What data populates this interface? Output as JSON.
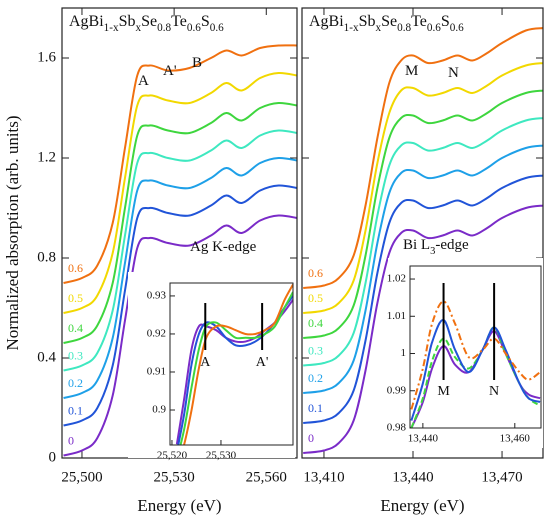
{
  "chart_data": [
    {
      "type": "line",
      "title": [
        {
          "text": "AgBi"
        },
        {
          "text": "1-x",
          "sub": true
        },
        {
          "text": "Sb"
        },
        {
          "text": "x",
          "sub": true
        },
        {
          "text": "Se"
        },
        {
          "text": "0.8",
          "sub": true
        },
        {
          "text": "Te"
        },
        {
          "text": "0.6",
          "sub": true
        },
        {
          "text": "S"
        },
        {
          "text": "0.6",
          "sub": true
        }
      ],
      "x_label": "Energy (eV)",
      "y_label": "Normalized absorption (arb. units)",
      "xlim": [
        25493.5,
        25570
      ],
      "ylim": [
        0,
        1.8
      ],
      "xticks": [
        {
          "value": 25500,
          "label": "25,500"
        },
        {
          "value": 25530,
          "label": "25,530"
        },
        {
          "value": 25560,
          "label": "25,560"
        }
      ],
      "yticks": [
        0,
        0.4,
        0.8,
        1.2,
        1.6
      ],
      "ytick_labels": true,
      "x": [
        25494,
        25500,
        25505,
        25510,
        25514,
        25518,
        25522,
        25528,
        25535,
        25542,
        25547,
        25552,
        25558,
        25564,
        25570
      ],
      "series": [
        {
          "name": "0",
          "color": "#7a2bc8",
          "values": [
            0.01,
            0.03,
            0.08,
            0.25,
            0.55,
            0.84,
            0.88,
            0.86,
            0.85,
            0.89,
            0.93,
            0.9,
            0.95,
            0.97,
            0.96
          ]
        },
        {
          "name": "0.1",
          "color": "#2154d8",
          "values": [
            0.13,
            0.15,
            0.2,
            0.37,
            0.67,
            0.96,
            1.0,
            0.98,
            0.97,
            1.01,
            1.05,
            1.02,
            1.07,
            1.09,
            1.08
          ]
        },
        {
          "name": "0.2",
          "color": "#1ea0e8",
          "values": [
            0.24,
            0.26,
            0.31,
            0.48,
            0.78,
            1.07,
            1.11,
            1.09,
            1.08,
            1.12,
            1.16,
            1.13,
            1.18,
            1.2,
            1.19
          ]
        },
        {
          "name": "0.3",
          "color": "#3ee8c0",
          "values": [
            0.35,
            0.37,
            0.42,
            0.59,
            0.89,
            1.18,
            1.22,
            1.2,
            1.19,
            1.23,
            1.27,
            1.24,
            1.29,
            1.31,
            1.3
          ]
        },
        {
          "name": "0.4",
          "color": "#3ed63e",
          "values": [
            0.46,
            0.48,
            0.53,
            0.7,
            1.0,
            1.29,
            1.33,
            1.31,
            1.3,
            1.34,
            1.38,
            1.35,
            1.4,
            1.42,
            1.41
          ]
        },
        {
          "name": "0.5",
          "color": "#f2d800",
          "values": [
            0.58,
            0.6,
            0.65,
            0.82,
            1.12,
            1.41,
            1.45,
            1.43,
            1.42,
            1.46,
            1.5,
            1.47,
            1.52,
            1.54,
            1.53
          ]
        },
        {
          "name": "0.6",
          "color": "#f07010",
          "values": [
            0.7,
            0.72,
            0.77,
            0.94,
            1.24,
            1.53,
            1.57,
            1.55,
            1.56,
            1.6,
            1.63,
            1.61,
            1.64,
            1.65,
            1.65
          ]
        }
      ],
      "annotations": [
        [
          {
            "text": "A"
          }
        ],
        [
          {
            "text": "A'"
          }
        ],
        [
          {
            "text": "B"
          }
        ],
        [
          {
            "text": "Ag K-edge"
          }
        ]
      ],
      "inset": {
        "xlim": [
          25519.6,
          25544.7
        ],
        "ylim": [
          0.8908,
          0.9334
        ],
        "xticks": [
          {
            "value": 25520,
            "label": "25,520"
          },
          {
            "value": 25530,
            "label": "25,530"
          }
        ],
        "yticks": [
          0.9,
          0.91,
          0.92,
          0.93
        ],
        "x": [
          25521,
          25522.5,
          25524,
          25525.5,
          25527,
          25529,
          25531,
          25533,
          25535,
          25537,
          25539,
          25541,
          25543,
          25544.7
        ],
        "series": [
          {
            "color": "#7a2bc8",
            "values": [
              0.891,
              0.903,
              0.916,
              0.922,
              0.922,
              0.921,
              0.919,
              0.918,
              0.918,
              0.919,
              0.921,
              0.923,
              0.926,
              0.929
            ]
          },
          {
            "color": "#2154d8",
            "values": [
              0.889,
              0.899,
              0.912,
              0.92,
              0.923,
              0.922,
              0.919,
              0.917,
              0.917,
              0.918,
              0.92,
              0.923,
              0.927,
              0.93
            ]
          },
          {
            "color": "#3ed63e",
            "values": [
              0.887,
              0.895,
              0.906,
              0.916,
              0.922,
              0.923,
              0.921,
              0.919,
              0.919,
              0.919,
              0.92,
              0.922,
              0.927,
              0.931
            ]
          },
          {
            "color": "#f07010",
            "values": [
              0.885,
              0.891,
              0.9,
              0.911,
              0.919,
              0.922,
              0.922,
              0.921,
              0.92,
              0.92,
              0.921,
              0.923,
              0.929,
              0.933
            ]
          }
        ],
        "markers": [
          {
            "x": 25526.8,
            "label": "A"
          },
          {
            "x": 25538.4,
            "label": "A'"
          }
        ]
      }
    },
    {
      "type": "line",
      "title": [
        {
          "text": "AgBi"
        },
        {
          "text": "1-x",
          "sub": true
        },
        {
          "text": "Sb"
        },
        {
          "text": "x",
          "sub": true
        },
        {
          "text": "Se"
        },
        {
          "text": "0.8",
          "sub": true
        },
        {
          "text": "Te"
        },
        {
          "text": "0.6",
          "sub": true
        },
        {
          "text": "S"
        },
        {
          "text": "0.6",
          "sub": true
        }
      ],
      "x_label": "Energy (eV)",
      "xlim": [
        13402.6,
        13483.8
      ],
      "ylim": [
        0,
        1.8
      ],
      "xticks": [
        {
          "value": 13410,
          "label": "13,410"
        },
        {
          "value": 13440,
          "label": "13,440"
        },
        {
          "value": 13470,
          "label": "13,470"
        }
      ],
      "yticks": [
        0,
        0.4,
        0.8,
        1.2,
        1.6
      ],
      "ytick_labels": false,
      "x": [
        13403,
        13410,
        13415,
        13420,
        13424,
        13428,
        13432,
        13436,
        13440,
        13445,
        13450,
        13455,
        13460,
        13465,
        13470,
        13478,
        13484
      ],
      "series": [
        {
          "name": "0",
          "color": "#7a2bc8",
          "values": [
            0.02,
            0.03,
            0.06,
            0.15,
            0.35,
            0.62,
            0.82,
            0.9,
            0.91,
            0.88,
            0.89,
            0.91,
            0.89,
            0.92,
            0.96,
            1.0,
            1.01
          ]
        },
        {
          "name": "0.1",
          "color": "#2154d8",
          "values": [
            0.14,
            0.15,
            0.18,
            0.27,
            0.47,
            0.74,
            0.94,
            1.02,
            1.03,
            1.0,
            1.01,
            1.03,
            1.01,
            1.04,
            1.08,
            1.12,
            1.13
          ]
        },
        {
          "name": "0.2",
          "color": "#1ea0e8",
          "values": [
            0.26,
            0.27,
            0.3,
            0.39,
            0.59,
            0.86,
            1.06,
            1.14,
            1.15,
            1.12,
            1.13,
            1.15,
            1.13,
            1.16,
            1.2,
            1.24,
            1.25
          ]
        },
        {
          "name": "0.3",
          "color": "#3ee8c0",
          "values": [
            0.37,
            0.38,
            0.41,
            0.5,
            0.7,
            0.97,
            1.17,
            1.25,
            1.26,
            1.23,
            1.24,
            1.26,
            1.24,
            1.27,
            1.31,
            1.35,
            1.36
          ]
        },
        {
          "name": "0.4",
          "color": "#3ed63e",
          "values": [
            0.48,
            0.49,
            0.52,
            0.61,
            0.81,
            1.08,
            1.28,
            1.36,
            1.37,
            1.34,
            1.35,
            1.37,
            1.35,
            1.38,
            1.42,
            1.46,
            1.47
          ]
        },
        {
          "name": "0.5",
          "color": "#f2d800",
          "values": [
            0.58,
            0.59,
            0.62,
            0.71,
            0.91,
            1.18,
            1.38,
            1.47,
            1.48,
            1.45,
            1.46,
            1.48,
            1.46,
            1.49,
            1.53,
            1.57,
            1.58
          ]
        },
        {
          "name": "0.6",
          "color": "#f07010",
          "values": [
            0.68,
            0.69,
            0.72,
            0.81,
            1.01,
            1.28,
            1.5,
            1.59,
            1.61,
            1.58,
            1.59,
            1.61,
            1.59,
            1.62,
            1.66,
            1.71,
            1.72
          ]
        }
      ],
      "annotations": [
        [
          {
            "text": "M"
          }
        ],
        [
          {
            "text": "N"
          }
        ],
        [
          {
            "text": "Bi L"
          },
          {
            "text": "3",
            "sub": true
          },
          {
            "text": "-edge"
          }
        ]
      ],
      "inset": {
        "xlim": [
          13437.2,
          13465.7
        ],
        "ylim": [
          0.98,
          1.0235
        ],
        "xticks": [
          {
            "value": 13440,
            "label": "13,440"
          },
          {
            "value": 13460,
            "label": "13,460"
          }
        ],
        "yticks": [
          0.98,
          0.99,
          1,
          1.01,
          1.02
        ],
        "x": [
          13437.5,
          13440,
          13442,
          13444.5,
          13447,
          13450,
          13453,
          13455.5,
          13458,
          13461,
          13463,
          13465.5
        ],
        "series": [
          {
            "color": "#7a2bc8",
            "values": [
              0.98,
              0.987,
              0.996,
              1.002,
              0.997,
              0.995,
              1.001,
              1.006,
              1.0,
              0.992,
              0.989,
              0.988
            ]
          },
          {
            "color": "#3ed63e",
            "dash": "dashed",
            "values": [
              0.98,
              0.988,
              0.998,
              1.004,
              0.999,
              0.996,
              1.001,
              1.007,
              1.0,
              0.992,
              0.988,
              0.986
            ]
          },
          {
            "color": "#2154d8",
            "values": [
              0.982,
              0.992,
              1.003,
              1.009,
              1.001,
              0.995,
              1.001,
              1.007,
              1.001,
              0.992,
              0.988,
              0.987
            ]
          },
          {
            "color": "#f07010",
            "dash": "dashdot",
            "values": [
              0.985,
              0.996,
              1.008,
              1.014,
              1.008,
              0.999,
              1.001,
              1.004,
              1.0,
              0.995,
              0.993,
              0.995
            ]
          }
        ],
        "markers": [
          {
            "x": 13444.5,
            "label": "M"
          },
          {
            "x": 13455.5,
            "label": "N"
          }
        ]
      }
    }
  ]
}
